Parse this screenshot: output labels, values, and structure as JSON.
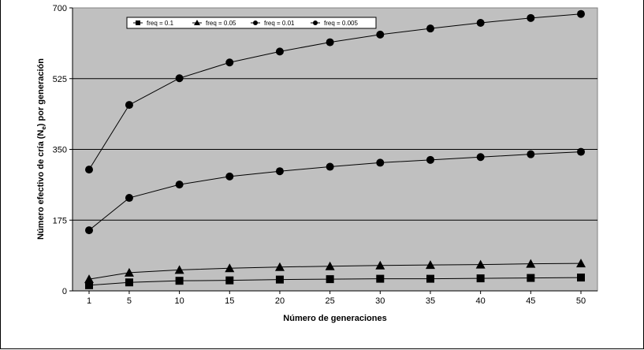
{
  "chart_data": {
    "type": "line",
    "xlabel": "Número de generaciones",
    "ylabel_prefix": "Número efectivo de cría (N",
    "ylabel_sub": "e",
    "ylabel_suffix": ") por generación",
    "x_ticks": [
      "1",
      "5",
      "10",
      "15",
      "20",
      "25",
      "30",
      "35",
      "40",
      "45",
      "50"
    ],
    "y_ticks": [
      "0",
      "175",
      "350",
      "525",
      "700"
    ],
    "ylim": [
      0,
      700
    ],
    "grid": "horizontal",
    "legend_position": "top",
    "plot_background": "#c0c0c0",
    "series": [
      {
        "name": "freq = 0.1",
        "marker": "square",
        "x": [
          1,
          5,
          10,
          15,
          20,
          25,
          30,
          35,
          40,
          45,
          50
        ],
        "values": [
          14,
          21,
          25,
          26,
          28,
          29,
          30,
          30,
          31,
          32,
          33
        ]
      },
      {
        "name": "freq = 0.05",
        "marker": "triangle",
        "x": [
          1,
          5,
          10,
          15,
          20,
          25,
          30,
          35,
          40,
          45,
          50
        ],
        "values": [
          29,
          45,
          52,
          56,
          59,
          61,
          63,
          64,
          65,
          67,
          68
        ]
      },
      {
        "name": "freq = 0.01",
        "marker": "circle",
        "x": [
          1,
          5,
          10,
          15,
          20,
          25,
          30,
          35,
          40,
          45,
          50
        ],
        "values": [
          150,
          230,
          263,
          283,
          296,
          307,
          317,
          324,
          331,
          338,
          344
        ]
      },
      {
        "name": "freq = 0.005",
        "marker": "circle",
        "x": [
          1,
          5,
          10,
          15,
          20,
          25,
          30,
          35,
          40,
          45,
          50
        ],
        "values": [
          300,
          460,
          526,
          565,
          592,
          615,
          634,
          649,
          663,
          675,
          685
        ]
      }
    ]
  }
}
